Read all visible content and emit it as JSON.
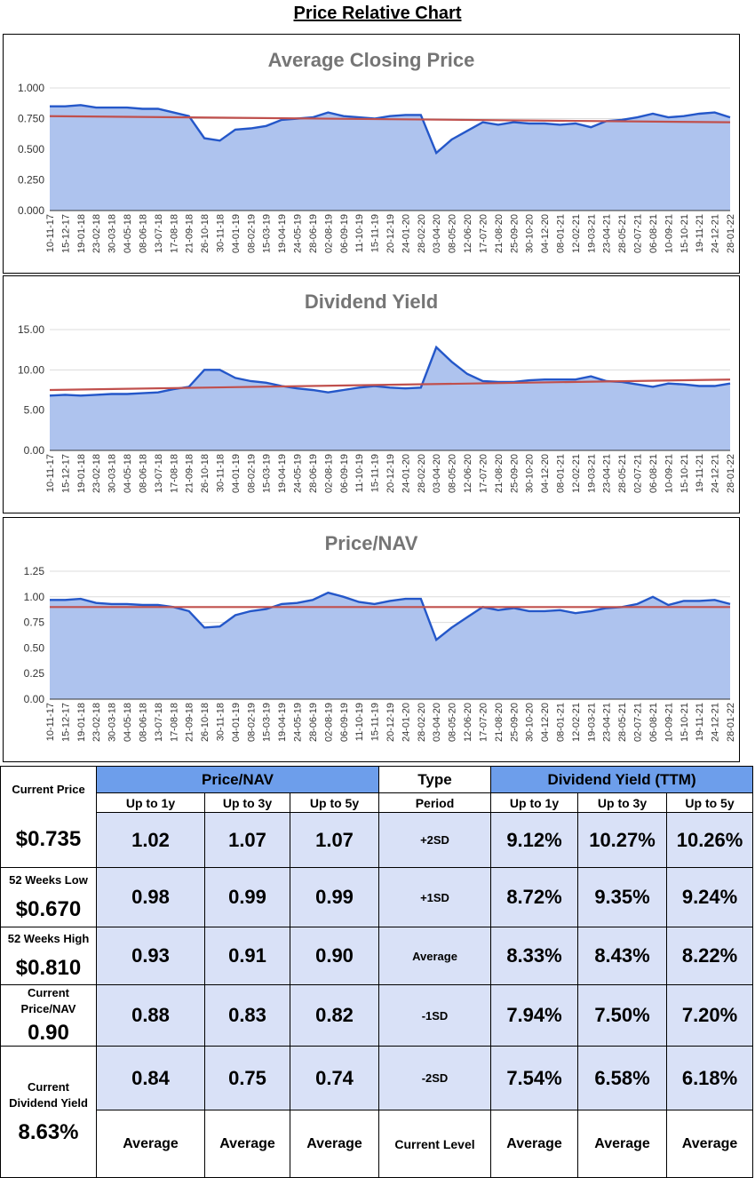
{
  "page": {
    "title": "Price Relative Chart"
  },
  "chart_data": [
    {
      "type": "area",
      "title": "Average Closing Price",
      "ylim": [
        0,
        1
      ],
      "yticks": [
        "0.000",
        "0.250",
        "0.500",
        "0.750",
        "1.000"
      ],
      "ytick_values": [
        0,
        0.25,
        0.5,
        0.75,
        1
      ],
      "categories": [
        "10-11-17",
        "15-12-17",
        "19-01-18",
        "23-02-18",
        "30-03-18",
        "04-05-18",
        "08-06-18",
        "13-07-18",
        "17-08-18",
        "21-09-18",
        "26-10-18",
        "30-11-18",
        "04-01-19",
        "08-02-19",
        "15-03-19",
        "19-04-19",
        "24-05-19",
        "28-06-19",
        "02-08-19",
        "06-09-19",
        "11-10-19",
        "15-11-19",
        "20-12-19",
        "24-01-20",
        "28-02-20",
        "03-04-20",
        "08-05-20",
        "12-06-20",
        "17-07-20",
        "21-08-20",
        "25-09-20",
        "30-10-20",
        "04-12-20",
        "08-01-21",
        "12-02-21",
        "19-03-21",
        "23-04-21",
        "28-05-21",
        "02-07-21",
        "06-08-21",
        "10-09-21",
        "15-10-21",
        "19-11-21",
        "24-12-21",
        "28-01-22"
      ],
      "values": [
        0.85,
        0.85,
        0.86,
        0.84,
        0.84,
        0.84,
        0.83,
        0.83,
        0.8,
        0.77,
        0.59,
        0.57,
        0.66,
        0.67,
        0.69,
        0.74,
        0.75,
        0.76,
        0.8,
        0.77,
        0.76,
        0.75,
        0.77,
        0.78,
        0.78,
        0.47,
        0.58,
        0.65,
        0.72,
        0.7,
        0.72,
        0.71,
        0.71,
        0.7,
        0.71,
        0.68,
        0.73,
        0.74,
        0.76,
        0.79,
        0.76,
        0.77,
        0.79,
        0.8,
        0.76
      ],
      "trend": [
        0.77,
        0.72
      ]
    },
    {
      "type": "area",
      "title": "Dividend Yield",
      "ylim": [
        0,
        15
      ],
      "yticks": [
        "0.00",
        "5.00",
        "10.00",
        "15.00"
      ],
      "ytick_values": [
        0,
        5,
        10,
        15
      ],
      "categories": [
        "10-11-17",
        "15-12-17",
        "19-01-18",
        "23-02-18",
        "30-03-18",
        "04-05-18",
        "08-06-18",
        "13-07-18",
        "17-08-18",
        "21-09-18",
        "26-10-18",
        "30-11-18",
        "04-01-19",
        "08-02-19",
        "15-03-19",
        "19-04-19",
        "24-05-19",
        "28-06-19",
        "02-08-19",
        "06-09-19",
        "11-10-19",
        "15-11-19",
        "20-12-19",
        "24-01-20",
        "28-02-20",
        "03-04-20",
        "08-05-20",
        "12-06-20",
        "17-07-20",
        "21-08-20",
        "25-09-20",
        "30-10-20",
        "04-12-20",
        "08-01-21",
        "12-02-21",
        "19-03-21",
        "23-04-21",
        "28-05-21",
        "02-07-21",
        "06-08-21",
        "10-09-21",
        "15-10-21",
        "19-11-21",
        "24-12-21",
        "28-01-22"
      ],
      "values": [
        6.8,
        6.9,
        6.8,
        6.9,
        7.0,
        7.0,
        7.1,
        7.2,
        7.6,
        7.9,
        10.0,
        10.0,
        9.0,
        8.6,
        8.4,
        8.0,
        7.7,
        7.5,
        7.2,
        7.5,
        7.8,
        8.0,
        7.8,
        7.7,
        7.8,
        12.8,
        11.0,
        9.5,
        8.6,
        8.5,
        8.5,
        8.7,
        8.8,
        8.8,
        8.8,
        9.2,
        8.6,
        8.5,
        8.2,
        7.9,
        8.3,
        8.2,
        8.0,
        8.0,
        8.3
      ],
      "trend": [
        7.5,
        8.8
      ]
    },
    {
      "type": "area",
      "title": "Price/NAV",
      "ylim": [
        0,
        1.25
      ],
      "yticks": [
        "0.00",
        "0.25",
        "0.50",
        "0.75",
        "1.00",
        "1.25"
      ],
      "ytick_values": [
        0,
        0.25,
        0.5,
        0.75,
        1,
        1.25
      ],
      "categories": [
        "10-11-17",
        "15-12-17",
        "19-01-18",
        "23-02-18",
        "30-03-18",
        "04-05-18",
        "08-06-18",
        "13-07-18",
        "17-08-18",
        "21-09-18",
        "26-10-18",
        "30-11-18",
        "04-01-19",
        "08-02-19",
        "15-03-19",
        "19-04-19",
        "24-05-19",
        "28-06-19",
        "02-08-19",
        "06-09-19",
        "11-10-19",
        "15-11-19",
        "20-12-19",
        "24-01-20",
        "28-02-20",
        "03-04-20",
        "08-05-20",
        "12-06-20",
        "17-07-20",
        "21-08-20",
        "25-09-20",
        "30-10-20",
        "04-12-20",
        "08-01-21",
        "12-02-21",
        "19-03-21",
        "23-04-21",
        "28-05-21",
        "02-07-21",
        "06-08-21",
        "10-09-21",
        "15-10-21",
        "19-11-21",
        "24-12-21",
        "28-01-22"
      ],
      "values": [
        0.97,
        0.97,
        0.98,
        0.94,
        0.93,
        0.93,
        0.92,
        0.92,
        0.9,
        0.86,
        0.7,
        0.71,
        0.82,
        0.86,
        0.88,
        0.93,
        0.94,
        0.97,
        1.04,
        1.0,
        0.95,
        0.93,
        0.96,
        0.98,
        0.98,
        0.58,
        0.7,
        0.8,
        0.9,
        0.87,
        0.89,
        0.86,
        0.86,
        0.87,
        0.84,
        0.86,
        0.89,
        0.9,
        0.93,
        1.0,
        0.92,
        0.96,
        0.96,
        0.97,
        0.93
      ],
      "trend": [
        0.9,
        0.9
      ]
    }
  ],
  "table": {
    "price_nav_header": "Price/NAV",
    "type_header": "Type",
    "dividend_header": "Dividend Yield (TTM)",
    "sub_up_1y": "Up to 1y",
    "sub_up_3y": "Up to 3y",
    "sub_up_5y": "Up to 5y",
    "sub_period": "Period",
    "rows": [
      {
        "period": "+2SD",
        "pn1": "1.02",
        "pn3": "1.07",
        "pn5": "1.07",
        "dy1": "9.12%",
        "dy3": "10.27%",
        "dy5": "10.26%"
      },
      {
        "period": "+1SD",
        "pn1": "0.98",
        "pn3": "0.99",
        "pn5": "0.99",
        "dy1": "8.72%",
        "dy3": "9.35%",
        "dy5": "9.24%"
      },
      {
        "period": "Average",
        "pn1": "0.93",
        "pn3": "0.91",
        "pn5": "0.90",
        "dy1": "8.33%",
        "dy3": "8.43%",
        "dy5": "8.22%"
      },
      {
        "period": "-1SD",
        "pn1": "0.88",
        "pn3": "0.83",
        "pn5": "0.82",
        "dy1": "7.94%",
        "dy3": "7.50%",
        "dy5": "7.20%"
      },
      {
        "period": "-2SD",
        "pn1": "0.84",
        "pn3": "0.75",
        "pn5": "0.74",
        "dy1": "7.54%",
        "dy3": "6.58%",
        "dy5": "6.18%"
      }
    ],
    "footer": {
      "pn1": "Average",
      "pn3": "Average",
      "pn5": "Average",
      "type": "Current Level",
      "dy1": "Average",
      "dy3": "Average",
      "dy5": "Average"
    }
  },
  "summary": {
    "current_price_label": "Current Price",
    "current_price": "$0.735",
    "low_label": "52 Weeks Low",
    "low": "$0.670",
    "high_label": "52 Weeks High",
    "high": "$0.810",
    "pnav_label": "Current Price/NAV",
    "pnav": "0.90",
    "dy_label": "Current Dividend Yield",
    "dy": "8.63%"
  },
  "colors": {
    "area_fill": "#aec3ee",
    "line": "#2457c9",
    "trend": "#c0504d",
    "header_bg": "#6d9eeb",
    "cell_bg": "#d9e1f7",
    "title_gray": "#757575"
  }
}
